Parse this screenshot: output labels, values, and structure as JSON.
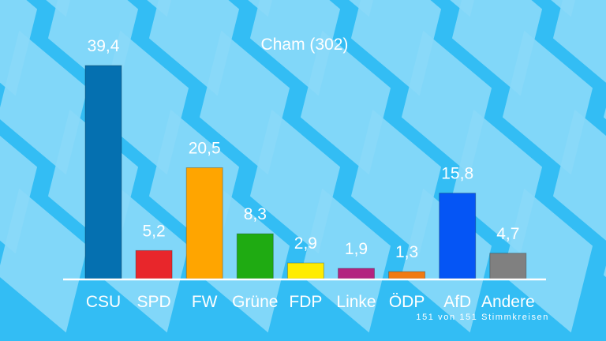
{
  "chart_data": {
    "type": "bar",
    "title": "Cham (302)",
    "categories": [
      "CSU",
      "SPD",
      "FW",
      "Grüne",
      "FDP",
      "Linke",
      "ÖDP",
      "AfD",
      "Andere"
    ],
    "values": [
      39.4,
      5.2,
      20.5,
      8.3,
      2.9,
      1.9,
      1.3,
      15.8,
      4.7
    ],
    "value_labels": [
      "39,4",
      "5,2",
      "20,5",
      "8,3",
      "2,9",
      "1,9",
      "1,3",
      "15,8",
      "4,7"
    ],
    "colors": [
      "#0570b0",
      "#e8262b",
      "#ffa500",
      "#1fab12",
      "#ffec00",
      "#b32480",
      "#f07a12",
      "#0555f5",
      "#808080"
    ],
    "ylim": [
      0,
      40
    ],
    "grid": false,
    "footnote": "151 von 151 Stimmkreisen"
  },
  "background": {
    "color": "#33bdf4",
    "diamond_color": "#f4fbff",
    "pattern": "bavarian-lozenges"
  }
}
